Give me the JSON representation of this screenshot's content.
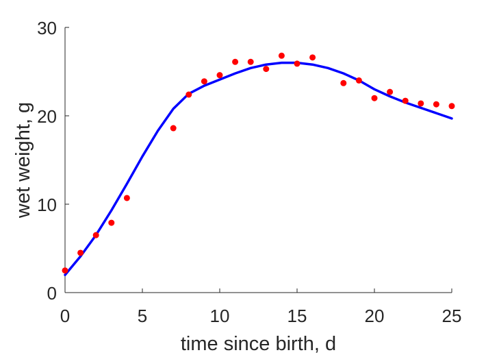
{
  "chart_data": {
    "type": "scatter",
    "title": "",
    "xlabel": "time since birth, d",
    "ylabel": "wet weight, g",
    "xlim": [
      0,
      25
    ],
    "ylim": [
      0,
      30
    ],
    "xticks": [
      "0",
      "5",
      "10",
      "15",
      "20",
      "25"
    ],
    "yticks": [
      "0",
      "10",
      "20",
      "30"
    ],
    "grid": false,
    "legend": "none",
    "series": [
      {
        "kind": "points",
        "color": "#ff0000",
        "x": [
          0,
          1,
          2,
          3,
          4,
          7,
          8,
          9,
          10,
          11,
          12,
          13,
          14,
          15,
          16,
          18,
          19,
          20,
          21,
          22,
          23,
          24,
          25
        ],
        "y": [
          2.5,
          4.5,
          6.5,
          7.9,
          10.7,
          18.6,
          22.4,
          23.9,
          24.6,
          26.1,
          26.1,
          25.3,
          26.8,
          25.9,
          26.6,
          23.7,
          24.0,
          22.0,
          22.7,
          21.7,
          21.4,
          21.3,
          21.1
        ]
      },
      {
        "kind": "line",
        "color": "#0000ff",
        "x": [
          0,
          1,
          2,
          3,
          4,
          5,
          6,
          7,
          8,
          9,
          10,
          11,
          12,
          13,
          14,
          15,
          16,
          17,
          18,
          19,
          20,
          21,
          22,
          23,
          24,
          25
        ],
        "y": [
          2.0,
          4.1,
          6.5,
          9.3,
          12.3,
          15.4,
          18.3,
          20.8,
          22.5,
          23.4,
          24.1,
          24.8,
          25.4,
          25.8,
          26.0,
          26.0,
          25.8,
          25.4,
          24.8,
          24.0,
          23.0,
          22.2,
          21.5,
          20.9,
          20.3,
          19.7
        ]
      }
    ]
  }
}
